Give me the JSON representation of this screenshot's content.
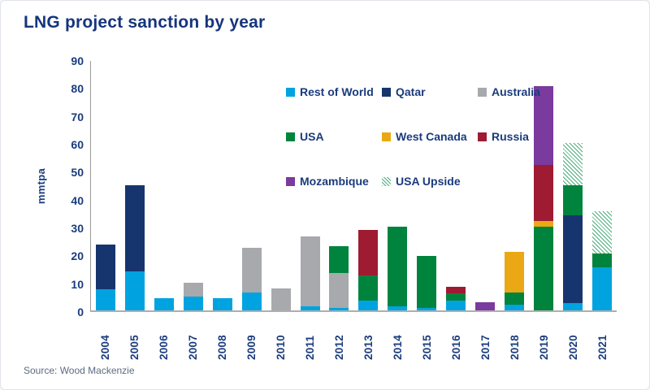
{
  "footer": {
    "source": "Source: Wood Mackenzie"
  },
  "chart_data": {
    "type": "bar",
    "stacked": true,
    "title": "LNG project sanction by year",
    "ylabel": "mmtpa",
    "ylim": [
      0,
      90
    ],
    "yticks": [
      0,
      10,
      20,
      30,
      40,
      50,
      60,
      70,
      80,
      90
    ],
    "grid": false,
    "legend_position": "inside-top-left",
    "legend_rows": [
      [
        "Rest of World",
        "Qatar",
        "Australia"
      ],
      [
        "USA",
        "West Canada",
        "Russia"
      ],
      [
        "Mozambique",
        "USA Upside"
      ]
    ],
    "categories": [
      "2004",
      "2005",
      "2006",
      "2007",
      "2008",
      "2009",
      "2010",
      "2011",
      "2012",
      "2013",
      "2014",
      "2015",
      "2016",
      "2017",
      "2018",
      "2019",
      "2020",
      "2021"
    ],
    "series": [
      {
        "name": "Rest of World",
        "color": "#00A3E0",
        "pattern": "solid",
        "values": [
          7.5,
          14,
          4.5,
          5,
          4.5,
          6.5,
          0,
          1.5,
          1,
          3.5,
          1.5,
          1,
          3.5,
          0,
          2,
          0,
          2.5,
          15.5
        ]
      },
      {
        "name": "Qatar",
        "color": "#16356E",
        "pattern": "solid",
        "values": [
          16,
          31,
          0,
          0,
          0,
          0,
          0,
          0,
          0,
          0,
          0,
          0,
          0,
          0,
          0,
          0,
          31.5,
          0
        ]
      },
      {
        "name": "Australia",
        "color": "#A7A9AC",
        "pattern": "solid",
        "values": [
          0,
          0,
          0,
          5,
          0,
          16,
          8,
          25,
          12.5,
          0,
          0,
          0,
          0,
          0,
          0,
          0,
          0,
          0
        ]
      },
      {
        "name": "USA",
        "color": "#00843D",
        "pattern": "solid",
        "values": [
          0,
          0,
          0,
          0,
          0,
          0,
          0,
          0,
          9.5,
          9,
          28.5,
          18.5,
          2.5,
          0,
          4.5,
          30,
          11,
          5
        ]
      },
      {
        "name": "West Canada",
        "color": "#EAA814",
        "pattern": "solid",
        "values": [
          0,
          0,
          0,
          0,
          0,
          0,
          0,
          0,
          0,
          0,
          0,
          0,
          0,
          0,
          14.5,
          2,
          0,
          0
        ]
      },
      {
        "name": "Russia",
        "color": "#9E1B32",
        "pattern": "solid",
        "values": [
          0,
          0,
          0,
          0,
          0,
          0,
          0,
          0,
          0,
          16.5,
          0,
          0,
          2.5,
          0,
          0,
          20,
          0,
          0
        ]
      },
      {
        "name": "Mozambique",
        "color": "#7A3A9E",
        "pattern": "solid",
        "values": [
          0,
          0,
          0,
          0,
          0,
          0,
          0,
          0,
          0,
          0,
          0,
          0,
          0,
          3,
          0,
          28.5,
          0,
          0
        ]
      },
      {
        "name": "USA Upside",
        "color": "#00843D",
        "pattern": "hatch",
        "values": [
          0,
          0,
          0,
          0,
          0,
          0,
          0,
          0,
          0,
          0,
          0,
          0,
          0,
          0,
          0,
          0,
          15,
          15
        ]
      }
    ]
  }
}
